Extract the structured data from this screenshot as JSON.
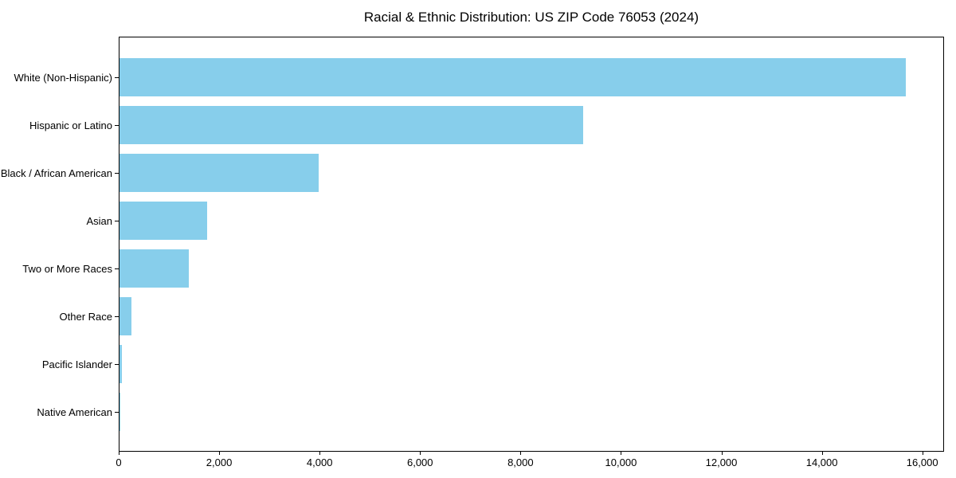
{
  "chart_data": {
    "type": "bar",
    "orientation": "horizontal",
    "title": "Racial & Ethnic Distribution: US ZIP Code 76053 (2024)",
    "xlabel": "",
    "ylabel": "",
    "categories": [
      "White (Non-Hispanic)",
      "Hispanic or Latino",
      "Black / African American",
      "Asian",
      "Two or More Races",
      "Other Race",
      "Pacific Islander",
      "Native American"
    ],
    "values": [
      15650,
      9230,
      3960,
      1745,
      1380,
      240,
      55,
      20
    ],
    "xlim": [
      0,
      16433
    ],
    "x_ticks": [
      0,
      2000,
      4000,
      6000,
      8000,
      10000,
      12000,
      14000,
      16000
    ],
    "x_tick_labels": [
      "0",
      "2,000",
      "4,000",
      "6,000",
      "8,000",
      "10,000",
      "12,000",
      "14,000",
      "16,000"
    ],
    "grid": false,
    "legend": null,
    "bar_color": "#87CEEB",
    "axis_color": "#000000",
    "background_color": "#ffffff"
  }
}
